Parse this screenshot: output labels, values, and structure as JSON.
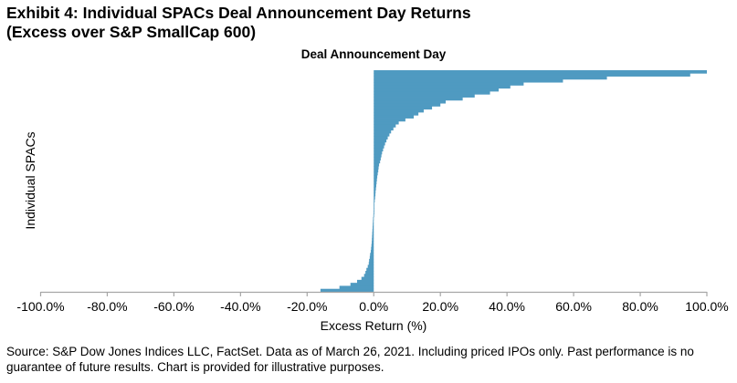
{
  "chart_data": {
    "type": "bar",
    "orientation": "horizontal",
    "title_line1": "Exhibit 4: Individual SPACs Deal Announcement Day Returns",
    "title_line2": "(Excess over S&P SmallCap 600)",
    "subtitle": "Deal Announcement Day",
    "xlabel": "Excess Return (%)",
    "ylabel": "Individual SPACs",
    "xlim": [
      -100,
      100
    ],
    "xticks": [
      -100,
      -80,
      -60,
      -40,
      -20,
      0,
      20,
      40,
      60,
      80,
      100
    ],
    "xtick_labels": [
      "-100.0%",
      "-80.0%",
      "-60.0%",
      "-40.0%",
      "-20.0%",
      "0.0%",
      "20.0%",
      "40.0%",
      "60.0%",
      "80.0%",
      "100.0%"
    ],
    "grid": false,
    "bar_color": "#4f9ac1",
    "axis_color": "#a6a6a6",
    "series": [
      {
        "name": "Excess Return (sorted, bottom to top)",
        "values": [
          -16,
          -10.3,
          -7,
          -5,
          -3.7,
          -2.9,
          -2.5,
          -2.2,
          -1.8,
          -1.5,
          -1.4,
          -1.2,
          -1.1,
          -0.9,
          -0.8,
          -0.7,
          -0.6,
          -0.55,
          -0.5,
          -0.45,
          -0.4,
          -0.35,
          -0.3,
          -0.25,
          -0.2,
          -0.12,
          -0.05,
          0,
          0.05,
          0.2,
          0.3,
          0.4,
          0.5,
          0.55,
          0.65,
          0.75,
          0.85,
          0.95,
          1.05,
          1.2,
          1.35,
          1.45,
          1.6,
          1.9,
          2.1,
          2.3,
          2.5,
          2.8,
          3.1,
          3.4,
          3.8,
          4.2,
          4.7,
          5.2,
          5.9,
          6.6,
          7.5,
          9.5,
          12,
          13.4,
          15,
          17.5,
          20,
          21.6,
          26.7,
          30.3,
          34.9,
          37.5,
          41,
          45,
          56.8,
          70,
          95,
          100
        ]
      }
    ]
  },
  "source": "Source: S&P Dow Jones Indices LLC, FactSet. Data as of March 26, 2021. Including priced IPOs only. Past performance is no guarantee of future results. Chart is provided for illustrative purposes."
}
